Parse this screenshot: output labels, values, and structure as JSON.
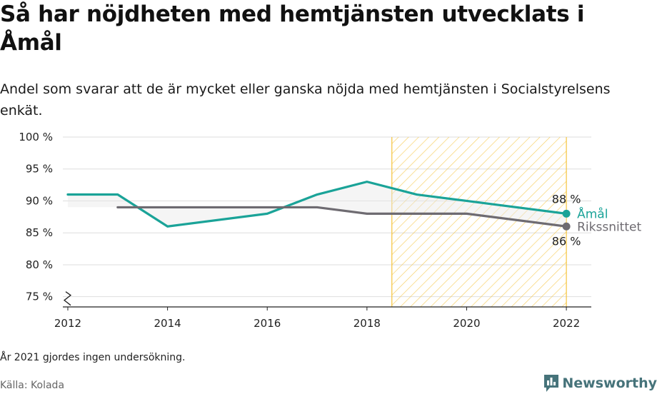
{
  "chart_data": {
    "type": "line",
    "title": "Så har nöjdheten med hemtjänsten utvecklats i Åmål",
    "subtitle": "Andel som svarar att de är mycket eller ganska nöjda med hemtjänsten i Socialstyrelsens enkät.",
    "footnote": "År 2021 gjordes ingen undersökning.",
    "source": "Källa: Kolada",
    "brand": "Newsworthy",
    "y_ticks": [
      "75 %",
      "80 %",
      "85 %",
      "90 %",
      "95 %",
      "100 %"
    ],
    "y_tick_values": [
      75,
      80,
      85,
      90,
      95,
      100
    ],
    "x_ticks": [
      "2012",
      "2014",
      "2016",
      "2018",
      "2020",
      "2022"
    ],
    "x_tick_values": [
      2012,
      2014,
      2016,
      2018,
      2020,
      2022
    ],
    "xlim": [
      2011.9,
      2022.5
    ],
    "ylim": [
      73.4,
      100
    ],
    "y_axis_break": true,
    "highlight_range": [
      2018.5,
      2022
    ],
    "highlight_color": "#f5c33b",
    "series": [
      {
        "name": "Åmål",
        "color": "#1aa398",
        "x": [
          2012,
          2013,
          2014,
          2016,
          2017,
          2018,
          2019,
          2020,
          2022
        ],
        "y": [
          91,
          91,
          86,
          88,
          91,
          93,
          91,
          90,
          88
        ],
        "end_label": "88 %"
      },
      {
        "name": "Rikssnittet",
        "color": "#6e6b71",
        "x": [
          2013,
          2014,
          2016,
          2017,
          2018,
          2020,
          2022
        ],
        "y": [
          89,
          89,
          89,
          89,
          88,
          88,
          86
        ],
        "end_label": "86 %"
      }
    ]
  }
}
